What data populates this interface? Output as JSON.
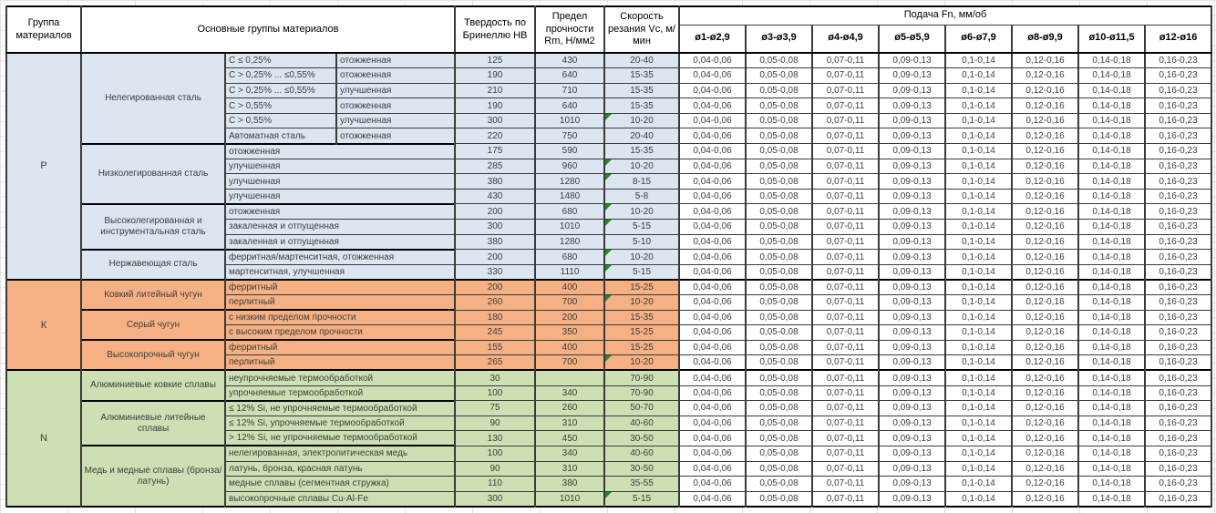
{
  "table": {
    "col_headers": {
      "group": "Группа материалов",
      "materials": "Основные группы материалов",
      "hardness": "Твердость по Бринеллю HB",
      "strength": "Предел прочности Rm, Н/мм2",
      "speed": "Скорость резания Vc, м/мин",
      "feed_title": "Подача Fn, мм/об",
      "diameters": [
        "ø1-ø2,9",
        "ø3-ø3,9",
        "ø4-ø4,9",
        "ø5-ø5,9",
        "ø6-ø7,9",
        "ø8-ø9,9",
        "ø10-ø11,5",
        "ø12-ø16"
      ]
    },
    "feed_values": [
      "0,04-0,06",
      "0,05-0,08",
      "0,07-0,11",
      "0,09-0,13",
      "0,1-0,14",
      "0,12-0,16",
      "0,14-0,18",
      "0,16-0,23"
    ],
    "colors": {
      "flag": "#1e8f1e"
    },
    "groups": [
      {
        "code": "P",
        "color": "#dce6f1",
        "subgroups": [
          {
            "name": "Нелегированная сталь",
            "rows": [
              {
                "spec": "C ≤ 0,25%",
                "state": "отожженная",
                "hb": "125",
                "rm": "430",
                "vc": "20-40"
              },
              {
                "spec": "C > 0,25% ... ≤0,55%",
                "state": "отожженная",
                "hb": "190",
                "rm": "640",
                "vc": "15-35"
              },
              {
                "spec": "C > 0,25% ... ≤0,55%",
                "state": "улучшенная",
                "hb": "210",
                "rm": "710",
                "vc": "15-35"
              },
              {
                "spec": "C > 0,55%",
                "state": "отожженная",
                "hb": "190",
                "rm": "640",
                "vc": "15-35"
              },
              {
                "spec": "C > 0,55%",
                "state": "улучшенная",
                "hb": "300",
                "rm": "1010",
                "vc": "10-20",
                "flag": true
              },
              {
                "spec": "Автоматная сталь",
                "state": "отожженная",
                "hb": "220",
                "rm": "750",
                "vc": "20-40"
              }
            ]
          },
          {
            "name": "Низколегированная сталь",
            "rows": [
              {
                "spec": "отожженная",
                "hb": "175",
                "rm": "590",
                "vc": "15-35"
              },
              {
                "spec": "улучшенная",
                "hb": "285",
                "rm": "960",
                "vc": "10-20",
                "flag": true
              },
              {
                "spec": "улучшенная",
                "hb": "380",
                "rm": "1280",
                "vc": "8-15",
                "flag": true
              },
              {
                "spec": "улучшенная",
                "hb": "430",
                "rm": "1480",
                "vc": "5-8"
              }
            ]
          },
          {
            "name": "Высоколегированная и инструментальная сталь",
            "rows": [
              {
                "spec": "отожженная",
                "hb": "200",
                "rm": "680",
                "vc": "10-20",
                "flag": true
              },
              {
                "spec": "закаленная и отпущенная",
                "hb": "300",
                "rm": "1010",
                "vc": "5-15",
                "flag": true
              },
              {
                "spec": "закаленная и отпущенная",
                "hb": "380",
                "rm": "1280",
                "vc": "5-10"
              }
            ]
          },
          {
            "name": "Нержавеющая сталь",
            "rows": [
              {
                "spec": "ферритная/мартенситная, отожженная",
                "hb": "200",
                "rm": "680",
                "vc": "10-20",
                "flag": true
              },
              {
                "spec": "мартенситная, улучшенная",
                "hb": "330",
                "rm": "1110",
                "vc": "5-15",
                "flag": true
              }
            ]
          }
        ]
      },
      {
        "code": "К",
        "color": "#f5b183",
        "subgroups": [
          {
            "name": "Ковкий литейный чугун",
            "rows": [
              {
                "spec": "ферритный",
                "hb": "200",
                "rm": "400",
                "vc": "15-25"
              },
              {
                "spec": "перлитный",
                "hb": "260",
                "rm": "700",
                "vc": "10-20",
                "flag": true
              }
            ]
          },
          {
            "name": "Серый чугун",
            "rows": [
              {
                "spec": "с низким пределом прочности",
                "hb": "180",
                "rm": "200",
                "vc": "15-35"
              },
              {
                "spec": "с высоким пределом прочности",
                "hb": "245",
                "rm": "350",
                "vc": "15-25"
              }
            ]
          },
          {
            "name": "Высокопрочный чугун",
            "rows": [
              {
                "spec": "ферритный",
                "hb": "155",
                "rm": "400",
                "vc": "15-25"
              },
              {
                "spec": "перлитный",
                "hb": "265",
                "rm": "700",
                "vc": "10-20",
                "flag": true
              }
            ]
          }
        ]
      },
      {
        "code": "N",
        "color": "#cce0b4",
        "subgroups": [
          {
            "name": "Алюминиевые ковкие сплавы",
            "rows": [
              {
                "spec": "неупрочняемые термообработкой",
                "hb": "30",
                "rm": "",
                "vc": "70-90"
              },
              {
                "spec": "упрочняемые термообработкой",
                "hb": "100",
                "rm": "340",
                "vc": "70-90"
              }
            ]
          },
          {
            "name": "Алюминиевые литейные сплавы",
            "rows": [
              {
                "spec": "≤ 12% Si, не упрочняемые термообработкой",
                "hb": "75",
                "rm": "260",
                "vc": "50-70"
              },
              {
                "spec": "≤ 12% Si, упрочняемые термообработкой",
                "hb": "90",
                "rm": "310",
                "vc": "40-60"
              },
              {
                "spec": "> 12% Si, не упрочняемые термообработкой",
                "hb": "130",
                "rm": "450",
                "vc": "30-50"
              }
            ]
          },
          {
            "name": "Медь и медные сплавы (бронза/латунь)",
            "rows": [
              {
                "spec": "нелегированная, электролитическая медь",
                "hb": "100",
                "rm": "340",
                "vc": "40-60"
              },
              {
                "spec": "латунь, бронза, красная латунь",
                "hb": "90",
                "rm": "310",
                "vc": "30-50"
              },
              {
                "spec": "медные сплавы (сегментная стружка)",
                "hb": "110",
                "rm": "380",
                "vc": "35-55"
              },
              {
                "spec": "высокопрочные сплавы Cu-Al-Fe",
                "hb": "300",
                "rm": "1010",
                "vc": "5-15",
                "flag": true
              }
            ]
          }
        ]
      }
    ]
  }
}
